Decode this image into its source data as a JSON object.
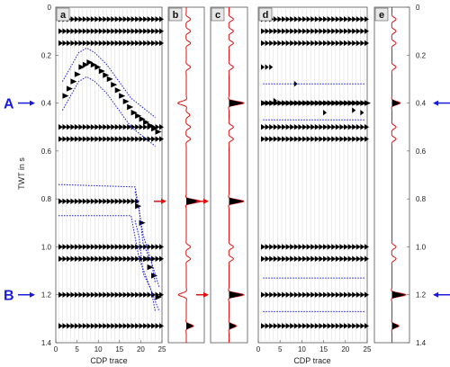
{
  "chart_data": {
    "type": "seismic-wiggle",
    "ylabel": "TWT in s",
    "xlabel": "CDP trace",
    "yticks": [
      "0",
      "0.2",
      "0.4",
      "0.6",
      "0.8",
      "1.0",
      "1.2",
      "1.4"
    ],
    "xticks": [
      "0",
      "5",
      "10",
      "15",
      "20",
      "25"
    ],
    "ylim": [
      0,
      1.4
    ],
    "xlim": [
      0,
      25
    ],
    "markers": [
      {
        "label": "A",
        "twt": 0.4,
        "color": "#1a1adb"
      },
      {
        "label": "B",
        "twt": 1.2,
        "color": "#1a1adb"
      }
    ],
    "panels": [
      {
        "label": "a",
        "kind": "gather",
        "events": [
          {
            "type": "flat",
            "t": 0.05
          },
          {
            "type": "flat",
            "t": 0.1
          },
          {
            "type": "flat",
            "t": 0.15
          },
          {
            "type": "dipping",
            "points": [
              [
                1,
                0.37
              ],
              [
                3,
                0.31
              ],
              [
                5,
                0.25
              ],
              [
                7,
                0.23
              ],
              [
                9,
                0.25
              ],
              [
                12,
                0.3
              ],
              [
                15,
                0.37
              ],
              [
                18,
                0.44
              ],
              [
                21,
                0.48
              ],
              [
                24,
                0.52
              ]
            ]
          },
          {
            "type": "flat",
            "t": 0.5
          },
          {
            "type": "flat",
            "t": 0.55
          },
          {
            "type": "flat",
            "t": 0.81,
            "xmax": 19
          },
          {
            "type": "dipping",
            "points": [
              [
                19,
                0.83
              ],
              [
                20,
                0.9
              ],
              [
                21,
                1.05
              ],
              [
                23,
                1.12
              ],
              [
                24,
                1.21
              ]
            ]
          },
          {
            "type": "flat",
            "t": 1.0
          },
          {
            "type": "flat",
            "t": 1.05
          },
          {
            "type": "flat",
            "t": 1.2
          },
          {
            "type": "flat",
            "t": 1.33
          }
        ]
      },
      {
        "label": "b",
        "kind": "trace"
      },
      {
        "label": "c",
        "kind": "trace"
      },
      {
        "label": "d",
        "kind": "gather"
      },
      {
        "label": "e",
        "kind": "trace"
      }
    ],
    "single_traces": {
      "b": [
        [
          0.05,
          0.3
        ],
        [
          0.1,
          0.3
        ],
        [
          0.15,
          0.3
        ],
        [
          0.25,
          0.3
        ],
        [
          0.4,
          -0.6
        ],
        [
          0.45,
          0.25
        ],
        [
          0.5,
          0.3
        ],
        [
          0.55,
          0.3
        ],
        [
          0.81,
          1.0
        ],
        [
          1.0,
          0.3
        ],
        [
          1.05,
          0.3
        ],
        [
          1.2,
          -0.55
        ],
        [
          1.33,
          0.5
        ]
      ],
      "c": [
        [
          0.05,
          0.3
        ],
        [
          0.1,
          0.3
        ],
        [
          0.15,
          0.3
        ],
        [
          0.25,
          0.3
        ],
        [
          0.4,
          1.0
        ],
        [
          0.5,
          0.3
        ],
        [
          0.55,
          0.3
        ],
        [
          0.81,
          1.0
        ],
        [
          1.0,
          0.3
        ],
        [
          1.05,
          0.3
        ],
        [
          1.2,
          1.0
        ],
        [
          1.33,
          0.5
        ]
      ],
      "e": [
        [
          0.05,
          0.3
        ],
        [
          0.1,
          0.3
        ],
        [
          0.15,
          0.3
        ],
        [
          0.25,
          0.3
        ],
        [
          0.4,
          0.6
        ],
        [
          0.5,
          0.3
        ],
        [
          0.55,
          0.3
        ],
        [
          1.0,
          0.3
        ],
        [
          1.05,
          0.3
        ],
        [
          1.2,
          1.0
        ],
        [
          1.33,
          0.5
        ]
      ]
    },
    "red_arrows": [
      {
        "panel": "b",
        "twt": 0.81
      },
      {
        "panel": "c",
        "twt": 0.81
      },
      {
        "panel": "c",
        "twt": 1.2
      }
    ],
    "colors": {
      "wiggle_fill": "#000000",
      "trace_line": "#e01010",
      "bound_line": "#1a1adb",
      "arrow_red": "#e01010",
      "arrow_blue": "#1a1adb"
    }
  }
}
